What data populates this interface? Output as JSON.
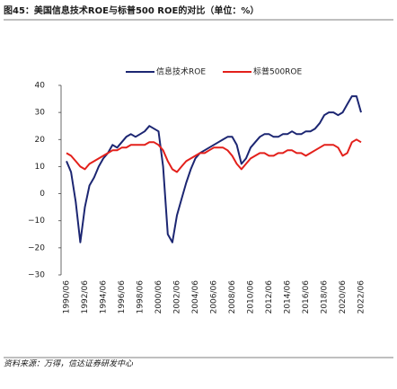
{
  "chart_data": {
    "type": "line",
    "title": "图45：美国信息技术ROE与标普500 ROE的对比（单位：%）",
    "source": "资料来源：万得，信达证券研发中心",
    "categories": [
      "1990/06",
      null,
      null,
      null,
      "1992/06",
      null,
      null,
      null,
      "1994/06",
      null,
      null,
      null,
      "1996/06",
      null,
      null,
      null,
      "1998/06",
      null,
      null,
      null,
      "2000/06",
      null,
      null,
      null,
      "2002/06",
      null,
      null,
      null,
      "2004/06",
      null,
      null,
      null,
      "2006/06",
      null,
      null,
      null,
      "2008/06",
      null,
      null,
      null,
      "2010/06",
      null,
      null,
      null,
      "2012/06",
      null,
      null,
      null,
      "2014/06",
      null,
      null,
      null,
      "2016/06",
      null,
      null,
      null,
      "2018/06",
      null,
      null,
      null,
      "2020/06",
      null,
      null,
      null,
      "2022/06"
    ],
    "series": [
      {
        "name": "信息技术ROE",
        "color": "#1c2672",
        "values": [
          12,
          8,
          -3,
          -18,
          -5,
          3,
          6,
          10,
          13,
          15,
          18,
          17,
          19,
          21,
          22,
          21,
          22,
          23,
          25,
          24,
          23,
          10,
          -15,
          -18,
          -8,
          -2,
          4,
          9,
          13,
          15,
          16,
          17,
          18,
          19,
          20,
          21,
          21,
          18,
          11,
          13,
          17,
          19,
          21,
          22,
          22,
          21,
          21,
          22,
          22,
          23,
          22,
          22,
          23,
          23,
          24,
          26,
          29,
          30,
          30,
          29,
          30,
          33,
          36,
          36,
          30
        ]
      },
      {
        "name": "标普500ROE",
        "color": "#e3201b",
        "values": [
          15,
          14,
          12,
          10,
          9,
          11,
          12,
          13,
          14,
          15,
          16,
          16,
          17,
          17,
          18,
          18,
          18,
          18,
          19,
          19,
          18,
          16,
          12,
          9,
          8,
          10,
          12,
          13,
          14,
          15,
          15,
          16,
          17,
          17,
          17,
          16,
          14,
          11,
          9,
          11,
          13,
          14,
          15,
          15,
          14,
          14,
          15,
          15,
          16,
          16,
          15,
          15,
          14,
          15,
          16,
          17,
          18,
          18,
          18,
          17,
          14,
          15,
          19,
          20,
          19
        ]
      }
    ],
    "ylim": [
      -30,
      40
    ],
    "yticks": [
      {
        "value": -30,
        "label": "−30"
      },
      {
        "value": -20,
        "label": "−20"
      },
      {
        "value": -10,
        "label": "−10"
      },
      0,
      10,
      20,
      30,
      40
    ],
    "legend": "top"
  }
}
